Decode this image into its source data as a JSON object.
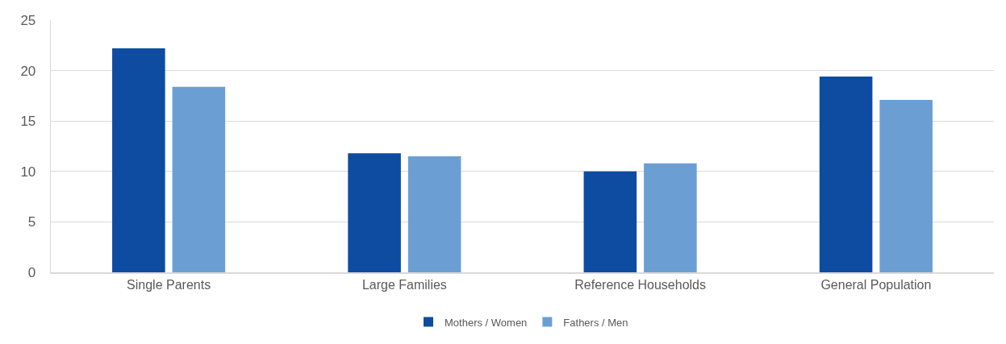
{
  "chart_data": {
    "type": "bar",
    "categories": [
      "Single Parents",
      "Large Families",
      "Reference Households",
      "General Population"
    ],
    "series": [
      {
        "name": "Mothers / Women",
        "color": "#0d4ca1",
        "values": [
          22.2,
          11.8,
          10.0,
          19.4
        ]
      },
      {
        "name": "Fathers / Men",
        "color": "#6b9fd4",
        "values": [
          18.4,
          11.5,
          10.8,
          17.1
        ]
      }
    ],
    "ylim": [
      0,
      25
    ],
    "yticks": [
      0,
      5,
      10,
      15,
      20,
      25
    ],
    "grid": "y",
    "legend": "bottom"
  }
}
